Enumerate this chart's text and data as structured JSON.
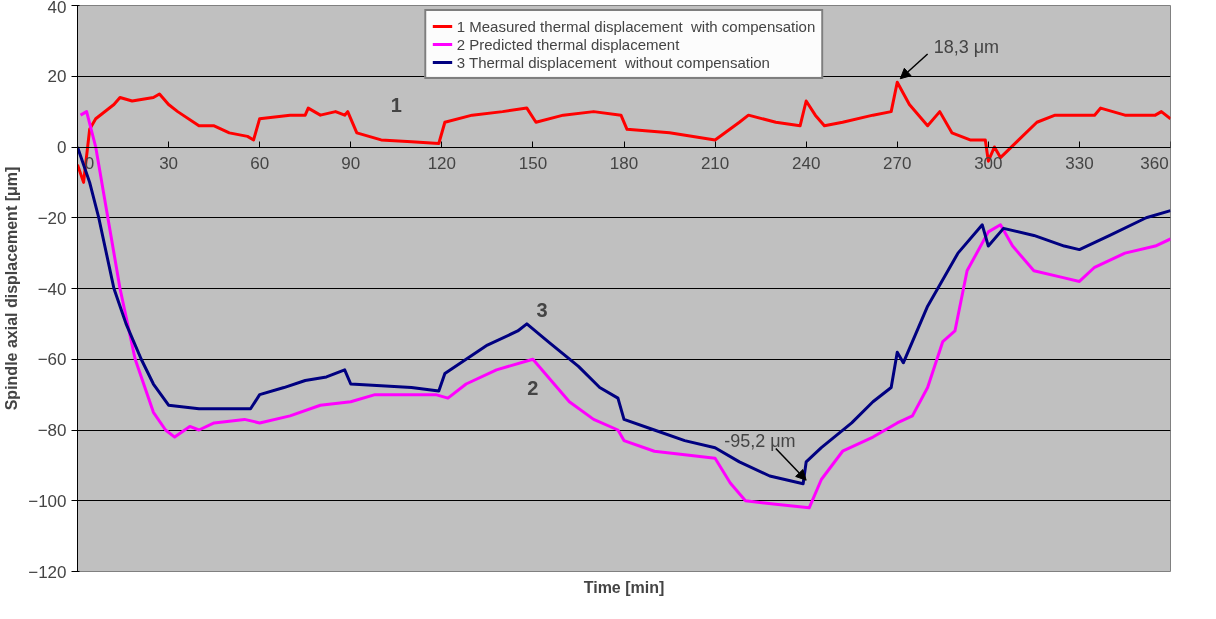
{
  "chart_data": {
    "type": "line",
    "xlabel": "Time [min]",
    "ylabel": "Spindle axial displacement [μm]",
    "xlim": [
      0,
      360
    ],
    "xticks": [
      0,
      30,
      60,
      90,
      120,
      150,
      180,
      210,
      240,
      270,
      300,
      330,
      360
    ],
    "ylim": [
      -120,
      40
    ],
    "yticks": [
      -120,
      -100,
      -80,
      -60,
      -40,
      -20,
      0,
      20,
      40
    ],
    "grid": "y",
    "legend": "top",
    "marker": "none",
    "line_style": "solid",
    "series": [
      {
        "name": "1 Measured thermal displacement  with compensation",
        "color": "#ff0000",
        "x": [
          0,
          2,
          4,
          6,
          12,
          14,
          18,
          25,
          27,
          30,
          33,
          40,
          45,
          50,
          56,
          58,
          60,
          70,
          75,
          76,
          80,
          85,
          88,
          89,
          92,
          100,
          110,
          119,
          121,
          130,
          140,
          148,
          151,
          160,
          170,
          179,
          181,
          195,
          210,
          218,
          221,
          230,
          238,
          240,
          243,
          246,
          252,
          262,
          268,
          270,
          274,
          280,
          284,
          288,
          294,
          299,
          300,
          302,
          304,
          310,
          316,
          322,
          335,
          337,
          345,
          355,
          357,
          360
        ],
        "values": [
          -5,
          -10,
          5,
          8,
          12,
          14,
          13,
          14,
          15,
          12,
          10,
          6,
          6,
          4,
          3,
          2,
          8,
          9,
          9,
          11,
          9,
          10,
          9,
          10,
          4,
          2,
          1.5,
          1,
          7,
          9,
          10,
          11,
          7,
          9,
          10,
          9,
          5,
          4,
          2,
          7,
          9,
          7,
          6,
          13,
          9,
          6,
          7,
          9,
          10,
          18.3,
          12,
          6,
          10,
          4,
          2,
          2,
          -4,
          0,
          -3,
          2,
          7,
          9,
          9,
          11,
          9,
          9,
          10,
          8
        ]
      },
      {
        "name": "2 Predicted thermal displacement",
        "color": "#ff00ff",
        "x": [
          1,
          3,
          6,
          10,
          14,
          19,
          25,
          29,
          32,
          37,
          40,
          45,
          55,
          60,
          70,
          80,
          90,
          98,
          118,
          122,
          128,
          138,
          150,
          155,
          162,
          170,
          178,
          180,
          190,
          200,
          210,
          215,
          220,
          230,
          241,
          245,
          252,
          262,
          270,
          275,
          280,
          285,
          289,
          293,
          300,
          304,
          308,
          315,
          325,
          330,
          335,
          345,
          355,
          360
        ],
        "values": [
          9,
          10,
          0,
          -20,
          -40,
          -60,
          -75,
          -80,
          -82,
          -79,
          -80,
          -78,
          -77,
          -78,
          -76,
          -73,
          -72,
          -70,
          -70,
          -71,
          -67,
          -63,
          -60,
          -65,
          -72,
          -77,
          -80,
          -83,
          -86,
          -87,
          -88,
          -95,
          -100,
          -101,
          -102,
          -94,
          -86,
          -82,
          -78,
          -76,
          -68,
          -55,
          -52,
          -35,
          -24,
          -22,
          -28,
          -35,
          -37,
          -38,
          -34,
          -30,
          -28,
          -26
        ]
      },
      {
        "name": "3 Thermal displacement  without compensation",
        "color": "#000080",
        "x": [
          0,
          4,
          7,
          12,
          16,
          21,
          25,
          30,
          40,
          57,
          60,
          68,
          75,
          82,
          88,
          90,
          110,
          119,
          121,
          128,
          135,
          145,
          148,
          155,
          165,
          172,
          178,
          180,
          190,
          200,
          210,
          218,
          228,
          239,
          240,
          245,
          255,
          262,
          268,
          270,
          272,
          280,
          290,
          298,
          300,
          305,
          315,
          325,
          330,
          340,
          352,
          360
        ],
        "values": [
          0,
          -10,
          -20,
          -40,
          -50,
          -60,
          -67,
          -73,
          -74,
          -74,
          -70,
          -68,
          -66,
          -65,
          -63,
          -67,
          -68,
          -69,
          -64,
          -60,
          -56,
          -52,
          -50,
          -55,
          -62,
          -68,
          -71,
          -77,
          -80,
          -83,
          -85,
          -89,
          -93,
          -95.2,
          -89,
          -85,
          -78,
          -72,
          -68,
          -58,
          -61,
          -45,
          -30,
          -22,
          -28,
          -23,
          -25,
          -28,
          -29,
          -25,
          -20,
          -18
        ]
      }
    ],
    "annotations": [
      "1",
      "2",
      "3",
      {
        "text": "18,3 μm",
        "x": 270,
        "y": 18.3
      },
      {
        "text": "-95,2 μm",
        "x": 239,
        "y": -95.2
      }
    ]
  }
}
